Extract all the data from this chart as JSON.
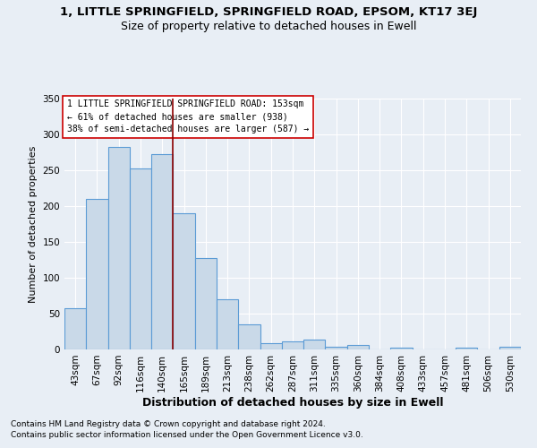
{
  "title": "1, LITTLE SPRINGFIELD, SPRINGFIELD ROAD, EPSOM, KT17 3EJ",
  "subtitle": "Size of property relative to detached houses in Ewell",
  "xlabel": "Distribution of detached houses by size in Ewell",
  "ylabel": "Number of detached properties",
  "footnote1": "Contains HM Land Registry data © Crown copyright and database right 2024.",
  "footnote2": "Contains public sector information licensed under the Open Government Licence v3.0.",
  "annotation_line1": "1 LITTLE SPRINGFIELD SPRINGFIELD ROAD: 153sqm",
  "annotation_line2": "← 61% of detached houses are smaller (938)",
  "annotation_line3": "38% of semi-detached houses are larger (587) →",
  "bar_color": "#c9d9e8",
  "bar_edge_color": "#5b9bd5",
  "vline_color": "#8b0000",
  "vline_x_index": 5,
  "categories": [
    "43sqm",
    "67sqm",
    "92sqm",
    "116sqm",
    "140sqm",
    "165sqm",
    "189sqm",
    "213sqm",
    "238sqm",
    "262sqm",
    "287sqm",
    "311sqm",
    "335sqm",
    "360sqm",
    "384sqm",
    "408sqm",
    "433sqm",
    "457sqm",
    "481sqm",
    "506sqm",
    "530sqm"
  ],
  "values": [
    58,
    210,
    282,
    253,
    272,
    190,
    128,
    70,
    35,
    9,
    11,
    14,
    4,
    6,
    0,
    3,
    0,
    0,
    3,
    0,
    4
  ],
  "ylim": [
    0,
    350
  ],
  "yticks": [
    0,
    50,
    100,
    150,
    200,
    250,
    300,
    350
  ],
  "background_color": "#e8eef5",
  "grid_color": "#ffffff",
  "title_fontsize": 9.5,
  "subtitle_fontsize": 9,
  "ylabel_fontsize": 8,
  "xlabel_fontsize": 9,
  "tick_fontsize": 7.5,
  "annotation_fontsize": 7,
  "footnote_fontsize": 6.5
}
